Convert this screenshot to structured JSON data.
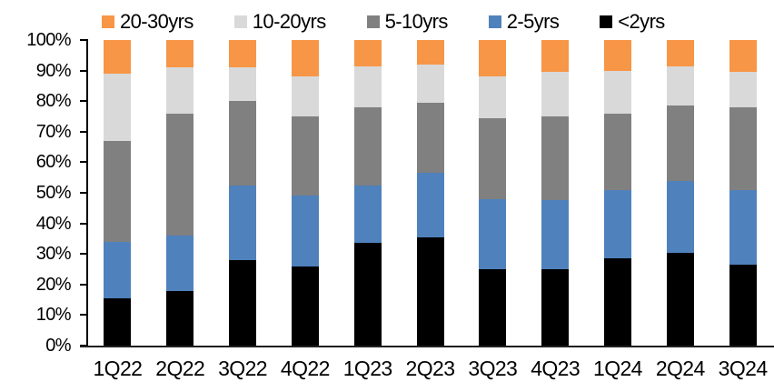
{
  "chart_data": {
    "type": "bar",
    "variant": "stacked-100-percent",
    "title": "",
    "xlabel": "",
    "ylabel": "",
    "ylim": [
      0,
      100
    ],
    "grid": false,
    "legend_position": "top",
    "background_color": "#ffffff",
    "axis_color": "#000000",
    "ytick_labels": [
      "0%",
      "10%",
      "20%",
      "30%",
      "40%",
      "50%",
      "60%",
      "70%",
      "80%",
      "90%",
      "100%"
    ],
    "categories": [
      "1Q22",
      "2Q22",
      "3Q22",
      "4Q22",
      "1Q23",
      "2Q23",
      "3Q23",
      "4Q23",
      "1Q24",
      "2Q24",
      "3Q24"
    ],
    "series": [
      {
        "name": "20-30yrs",
        "color": "#F79646",
        "values": [
          11,
          9,
          9,
          12,
          8.5,
          8,
          12,
          10.5,
          10,
          8.5,
          10.5
        ]
      },
      {
        "name": "10-20yrs",
        "color": "#D9D9D9",
        "values": [
          22,
          15,
          11,
          13,
          13.5,
          12.5,
          13.5,
          14.5,
          14,
          13,
          11.5
        ]
      },
      {
        "name": "5-10yrs",
        "color": "#808080",
        "values": [
          33,
          40,
          27.5,
          26,
          25.5,
          23,
          26.5,
          27.5,
          25,
          24.5,
          27
        ]
      },
      {
        "name": "2-5yrs",
        "color": "#4F81BD",
        "values": [
          18.5,
          18,
          24.5,
          23,
          19,
          21,
          23,
          22.5,
          22.5,
          23.5,
          24.5
        ]
      },
      {
        "name": "<2yrs",
        "color": "#000000",
        "values": [
          15.5,
          18,
          28,
          26,
          33.5,
          35.5,
          25,
          25,
          28.5,
          30.5,
          26.5
        ]
      }
    ],
    "stack_order_bottom_to_top": [
      "<2yrs",
      "2-5yrs",
      "5-10yrs",
      "10-20yrs",
      "20-30yrs"
    ]
  }
}
